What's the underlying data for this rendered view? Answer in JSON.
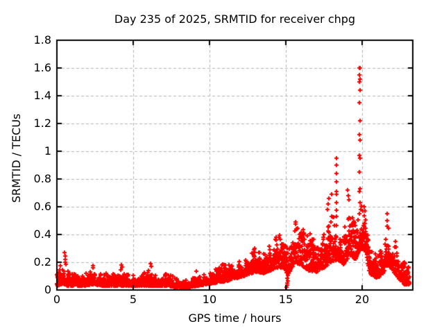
{
  "chart_data": {
    "type": "scatter",
    "title": "Day 235 of 2025, SRMTID for receiver chpg",
    "xlabel": "GPS time / hours",
    "ylabel": "SRMTID / TECUs",
    "xlim": [
      0,
      23.32
    ],
    "ylim": [
      0,
      1.8
    ],
    "xticks": {
      "values": [
        0,
        5,
        10,
        15,
        20
      ],
      "labels": [
        "0",
        "5",
        "10",
        "15",
        "20"
      ]
    },
    "yticks": {
      "values": [
        0,
        0.2,
        0.4,
        0.6,
        0.8,
        1.0,
        1.2,
        1.4,
        1.6,
        1.8
      ],
      "labels": [
        "0",
        "0.2",
        "0.4",
        "0.6",
        "0.8",
        "1",
        "1.2",
        "1.4",
        "1.6",
        "1.8"
      ]
    },
    "grid": true,
    "legend": "none",
    "marker": {
      "shape": "plus",
      "color": "#ff0000",
      "size": 7
    },
    "series": [
      {
        "name": "SRMTID",
        "points_per_hour": 120,
        "t_start": 0.0,
        "t_end": 23.1,
        "envelope": [
          [
            0.0,
            0.03,
            0.17
          ],
          [
            0.4,
            0.04,
            0.22
          ],
          [
            0.7,
            0.03,
            0.15
          ],
          [
            1.2,
            0.03,
            0.13
          ],
          [
            1.8,
            0.03,
            0.12
          ],
          [
            2.4,
            0.04,
            0.15
          ],
          [
            3.0,
            0.03,
            0.12
          ],
          [
            3.6,
            0.03,
            0.13
          ],
          [
            4.2,
            0.03,
            0.15
          ],
          [
            4.8,
            0.03,
            0.11
          ],
          [
            5.4,
            0.03,
            0.12
          ],
          [
            6.0,
            0.03,
            0.15
          ],
          [
            6.6,
            0.03,
            0.11
          ],
          [
            7.2,
            0.03,
            0.13
          ],
          [
            7.8,
            0.02,
            0.09
          ],
          [
            8.2,
            0.01,
            0.06
          ],
          [
            8.7,
            0.02,
            0.08
          ],
          [
            9.2,
            0.03,
            0.11
          ],
          [
            9.8,
            0.04,
            0.12
          ],
          [
            10.4,
            0.05,
            0.15
          ],
          [
            11.0,
            0.06,
            0.2
          ],
          [
            11.5,
            0.08,
            0.19
          ],
          [
            12.0,
            0.09,
            0.21
          ],
          [
            12.5,
            0.11,
            0.26
          ],
          [
            13.0,
            0.13,
            0.31
          ],
          [
            13.6,
            0.12,
            0.3
          ],
          [
            14.2,
            0.15,
            0.37
          ],
          [
            14.8,
            0.16,
            0.44
          ],
          [
            15.2,
            0.12,
            0.42
          ],
          [
            15.6,
            0.2,
            0.52
          ],
          [
            16.0,
            0.18,
            0.48
          ],
          [
            16.5,
            0.14,
            0.42
          ],
          [
            17.0,
            0.13,
            0.38
          ],
          [
            17.5,
            0.16,
            0.46
          ],
          [
            18.0,
            0.2,
            0.55
          ],
          [
            18.4,
            0.22,
            0.5
          ],
          [
            18.8,
            0.18,
            0.45
          ],
          [
            19.2,
            0.25,
            0.55
          ],
          [
            19.6,
            0.22,
            0.5
          ],
          [
            19.9,
            0.3,
            0.62
          ],
          [
            20.2,
            0.28,
            0.58
          ],
          [
            20.5,
            0.12,
            0.32
          ],
          [
            21.0,
            0.08,
            0.26
          ],
          [
            21.4,
            0.12,
            0.32
          ],
          [
            21.7,
            0.18,
            0.45
          ],
          [
            22.0,
            0.14,
            0.38
          ],
          [
            22.4,
            0.08,
            0.28
          ],
          [
            22.8,
            0.04,
            0.22
          ],
          [
            23.1,
            0.04,
            0.18
          ]
        ],
        "outliers": [
          [
            0.52,
            0.27
          ],
          [
            0.54,
            0.245
          ],
          [
            0.56,
            0.22
          ],
          [
            0.53,
            0.2
          ],
          [
            0.57,
            0.185
          ],
          [
            2.35,
            0.175
          ],
          [
            2.38,
            0.16
          ],
          [
            4.25,
            0.18
          ],
          [
            4.28,
            0.165
          ],
          [
            6.15,
            0.19
          ],
          [
            6.18,
            0.17
          ],
          [
            9.15,
            0.135
          ],
          [
            15.05,
            0.02
          ],
          [
            15.07,
            0.035
          ],
          [
            15.1,
            0.05
          ],
          [
            15.12,
            0.065
          ],
          [
            15.08,
            0.085
          ],
          [
            15.13,
            0.105
          ],
          [
            15.06,
            0.125
          ],
          [
            17.72,
            0.58
          ],
          [
            17.76,
            0.62
          ],
          [
            17.8,
            0.66
          ],
          [
            18.0,
            0.69
          ],
          [
            18.3,
            0.9
          ],
          [
            18.31,
            0.78
          ],
          [
            18.32,
            0.95
          ],
          [
            18.32,
            0.63
          ],
          [
            18.33,
            0.84
          ],
          [
            18.34,
            0.71
          ],
          [
            18.3,
            0.69
          ],
          [
            18.33,
            0.575
          ],
          [
            18.31,
            0.53
          ],
          [
            19.05,
            0.72
          ],
          [
            19.1,
            0.68
          ],
          [
            19.15,
            0.65
          ],
          [
            19.83,
            1.6
          ],
          [
            19.86,
            1.6
          ],
          [
            19.84,
            1.55
          ],
          [
            19.85,
            1.52
          ],
          [
            19.84,
            1.5
          ],
          [
            19.86,
            1.44
          ],
          [
            19.83,
            1.35
          ],
          [
            19.85,
            1.22
          ],
          [
            19.84,
            1.12
          ],
          [
            19.86,
            1.08
          ],
          [
            19.83,
            0.97
          ],
          [
            19.85,
            0.95
          ],
          [
            19.84,
            0.85
          ],
          [
            19.86,
            0.73
          ],
          [
            19.83,
            0.71
          ],
          [
            19.85,
            0.63
          ],
          [
            19.9,
            0.58
          ],
          [
            19.8,
            0.55
          ],
          [
            20.15,
            0.6
          ],
          [
            20.18,
            0.57
          ],
          [
            21.64,
            0.55
          ],
          [
            21.66,
            0.5
          ],
          [
            21.62,
            0.46
          ],
          [
            22.2,
            0.35
          ]
        ]
      }
    ]
  },
  "colors": {
    "background": "#ffffff",
    "marker": "#ff0000",
    "grid": "#b4b4b4",
    "axis": "#000000",
    "text": "#000000"
  }
}
